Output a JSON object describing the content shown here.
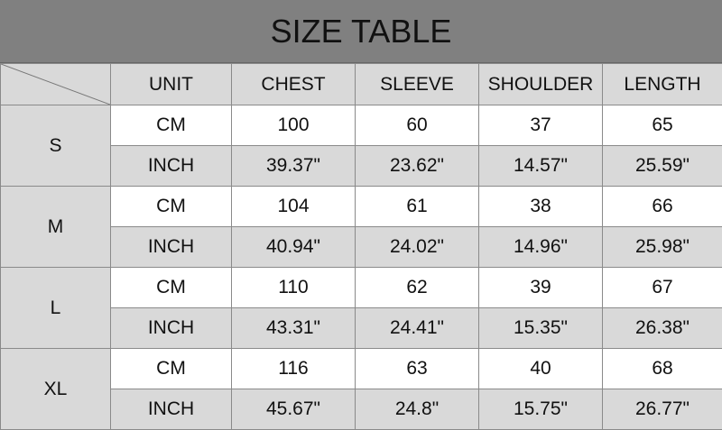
{
  "title": "SIZE TABLE",
  "headers": [
    "UNIT",
    "CHEST",
    "SLEEVE",
    "SHOULDER",
    "LENGTH"
  ],
  "sizes": [
    {
      "label": "S",
      "cm": [
        "CM",
        "100",
        "60",
        "37",
        "65"
      ],
      "inch": [
        "INCH",
        "39.37\"",
        "23.62\"",
        "14.57\"",
        "25.59\""
      ]
    },
    {
      "label": "M",
      "cm": [
        "CM",
        "104",
        "61",
        "38",
        "66"
      ],
      "inch": [
        "INCH",
        "40.94\"",
        "24.02\"",
        "14.96\"",
        "25.98\""
      ]
    },
    {
      "label": "L",
      "cm": [
        "CM",
        "110",
        "62",
        "39",
        "67"
      ],
      "inch": [
        "INCH",
        "43.31\"",
        "24.41\"",
        "15.35\"",
        "26.38\""
      ]
    },
    {
      "label": "XL",
      "cm": [
        "CM",
        "116",
        "63",
        "40",
        "68"
      ],
      "inch": [
        "INCH",
        "45.67\"",
        "24.8\"",
        "15.75\"",
        "26.77\""
      ]
    }
  ],
  "colors": {
    "title_bg": "#808080",
    "cell_gray": "#d9d9d9"
  }
}
